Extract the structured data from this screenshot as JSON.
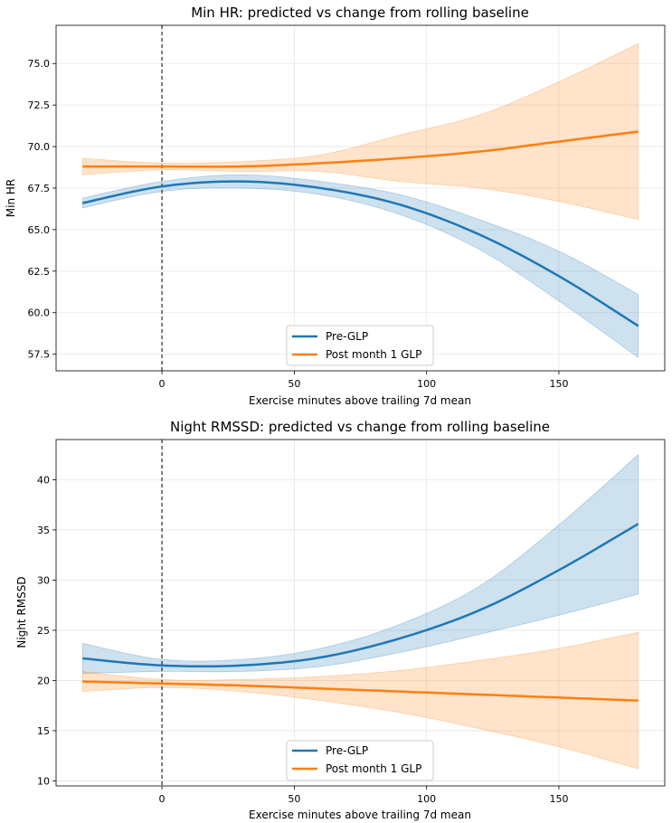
{
  "chart_data": [
    {
      "type": "line",
      "title": "Min HR: predicted vs change from rolling baseline",
      "xlabel": "Exercise minutes above trailing 7d mean",
      "ylabel": "Min HR",
      "xlim": [
        -40,
        190
      ],
      "ylim": [
        56.5,
        77.3
      ],
      "xticks": [
        0,
        50,
        100,
        150
      ],
      "yticks": [
        57.5,
        60.0,
        62.5,
        65.0,
        67.5,
        70.0,
        72.5,
        75.0
      ],
      "ytick_labels": [
        "57.5",
        "60.0",
        "62.5",
        "65.0",
        "67.5",
        "70.0",
        "72.5",
        "75.0"
      ],
      "grid": true,
      "vline_x": 0,
      "legend_position": "lower center",
      "series": [
        {
          "name": "Pre-GLP",
          "color": "#1f77b4",
          "x": [
            -30,
            0,
            30,
            60,
            90,
            120,
            150,
            180
          ],
          "y": [
            66.6,
            67.6,
            67.9,
            67.5,
            66.5,
            64.7,
            62.2,
            59.2
          ],
          "lower": [
            66.3,
            67.3,
            67.5,
            67.1,
            65.9,
            63.8,
            60.7,
            57.3
          ],
          "upper": [
            66.9,
            67.9,
            68.3,
            67.9,
            67.1,
            65.6,
            63.7,
            61.1
          ]
        },
        {
          "name": "Post month 1 GLP",
          "color": "#ff7f0e",
          "x": [
            -30,
            0,
            30,
            60,
            90,
            120,
            150,
            180
          ],
          "y": [
            68.8,
            68.8,
            68.8,
            69.0,
            69.3,
            69.7,
            70.3,
            70.9
          ],
          "lower": [
            68.3,
            68.6,
            68.5,
            68.5,
            67.9,
            67.5,
            66.7,
            65.6
          ],
          "upper": [
            69.3,
            69.0,
            69.1,
            69.5,
            70.7,
            71.9,
            73.9,
            76.2
          ]
        }
      ]
    },
    {
      "type": "line",
      "title": "Night RMSSD: predicted vs change from rolling baseline",
      "xlabel": "Exercise minutes above trailing 7d mean",
      "ylabel": "Night RMSSD",
      "xlim": [
        -40,
        190
      ],
      "ylim": [
        9.5,
        44.0
      ],
      "xticks": [
        0,
        50,
        100,
        150
      ],
      "yticks": [
        10,
        15,
        20,
        25,
        30,
        35,
        40
      ],
      "ytick_labels": [
        "10",
        "15",
        "20",
        "25",
        "30",
        "35",
        "40"
      ],
      "grid": true,
      "vline_x": 0,
      "legend_position": "lower center",
      "series": [
        {
          "name": "Pre-GLP",
          "color": "#1f77b4",
          "x": [
            -30,
            0,
            30,
            60,
            90,
            120,
            150,
            180
          ],
          "y": [
            22.2,
            21.5,
            21.5,
            22.3,
            24.2,
            27.0,
            31.0,
            35.6
          ],
          "lower": [
            20.7,
            20.9,
            20.9,
            21.4,
            22.8,
            24.6,
            26.5,
            28.6
          ],
          "upper": [
            23.7,
            22.1,
            22.1,
            23.2,
            25.6,
            29.4,
            35.5,
            42.5
          ]
        },
        {
          "name": "Post month 1 GLP",
          "color": "#ff7f0e",
          "x": [
            -30,
            0,
            30,
            60,
            90,
            120,
            150,
            180
          ],
          "y": [
            19.9,
            19.7,
            19.5,
            19.2,
            18.9,
            18.6,
            18.3,
            18.0
          ],
          "lower": [
            18.9,
            19.3,
            18.9,
            18.0,
            16.8,
            15.2,
            13.4,
            11.2
          ],
          "upper": [
            20.9,
            20.1,
            20.1,
            20.4,
            21.0,
            22.0,
            23.2,
            24.8
          ]
        }
      ]
    }
  ]
}
